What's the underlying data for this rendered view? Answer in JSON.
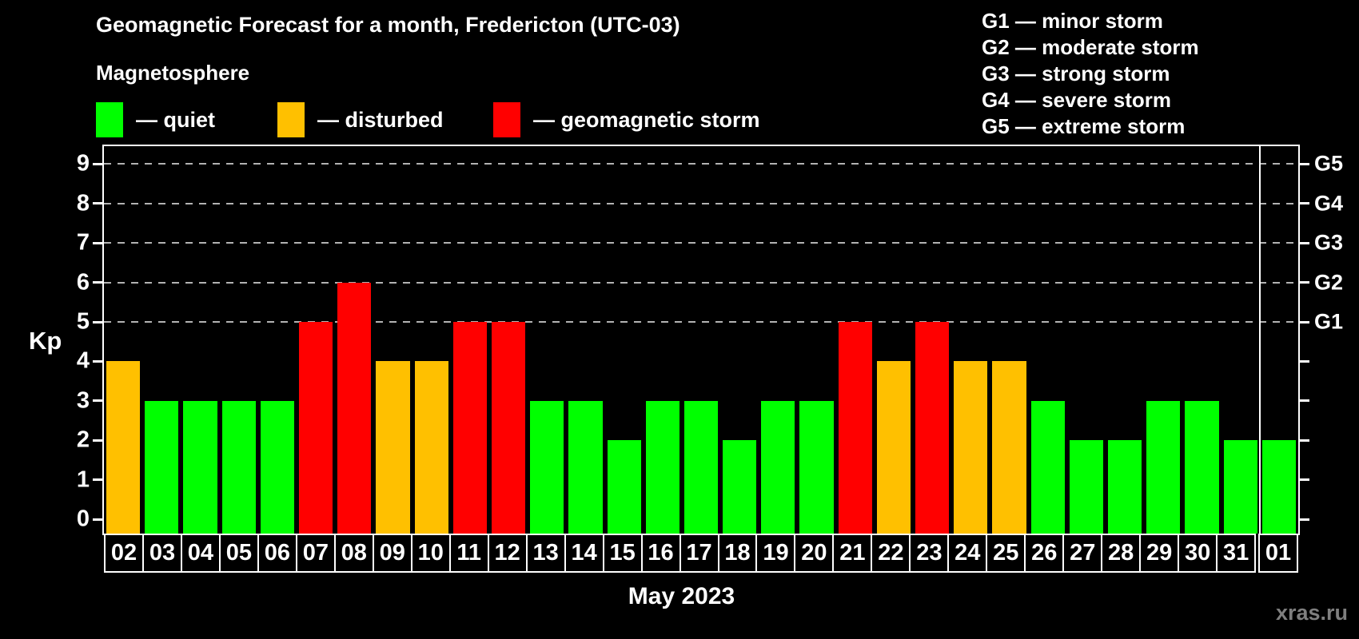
{
  "title": "Geomagnetic Forecast for a month, Fredericton (UTC-03)",
  "subtitle": "Magnetosphere",
  "legend": {
    "items": [
      {
        "name": "quiet",
        "label": "— quiet",
        "status": "quiet"
      },
      {
        "name": "disturbed",
        "label": "— disturbed",
        "status": "disturbed"
      },
      {
        "name": "storm",
        "label": "— geomagnetic storm",
        "status": "storm"
      }
    ]
  },
  "storm_scale": {
    "lines": [
      "G1 — minor storm",
      "G2 — moderate storm",
      "G3 — strong storm",
      "G4 — severe storm",
      "G5 — extreme storm"
    ]
  },
  "chart_data": {
    "type": "bar",
    "title": "Geomagnetic Forecast for a month, Fredericton (UTC-03)",
    "subtitle": "Magnetosphere",
    "xlabel": "May 2023",
    "ylabel": "Kp",
    "categories": [
      "02",
      "03",
      "04",
      "05",
      "06",
      "07",
      "08",
      "09",
      "10",
      "11",
      "12",
      "13",
      "14",
      "15",
      "16",
      "17",
      "18",
      "19",
      "20",
      "21",
      "22",
      "23",
      "24",
      "25",
      "26",
      "27",
      "28",
      "29",
      "30",
      "31",
      "01"
    ],
    "values": [
      4,
      3,
      3,
      3,
      3,
      5,
      6,
      4,
      4,
      5,
      5,
      3,
      3,
      2,
      3,
      3,
      2,
      3,
      3,
      5,
      4,
      5,
      4,
      4,
      3,
      2,
      2,
      3,
      3,
      2,
      2
    ],
    "statuses": [
      "disturbed",
      "quiet",
      "quiet",
      "quiet",
      "quiet",
      "storm",
      "storm",
      "disturbed",
      "disturbed",
      "storm",
      "storm",
      "quiet",
      "quiet",
      "quiet",
      "quiet",
      "quiet",
      "quiet",
      "quiet",
      "quiet",
      "storm",
      "disturbed",
      "storm",
      "disturbed",
      "disturbed",
      "quiet",
      "quiet",
      "quiet",
      "quiet",
      "quiet",
      "quiet",
      "quiet"
    ],
    "ylim": [
      -0.36,
      9.45
    ],
    "yticks": [
      0,
      1,
      2,
      3,
      4,
      5,
      6,
      7,
      8,
      9
    ],
    "gridlines": [
      5,
      6,
      7,
      8,
      9
    ],
    "right_axis": [
      {
        "kp": 5,
        "label": "G1"
      },
      {
        "kp": 6,
        "label": "G2"
      },
      {
        "kp": 7,
        "label": "G3"
      },
      {
        "kp": 8,
        "label": "G4"
      },
      {
        "kp": 9,
        "label": "G5"
      }
    ],
    "month_boundary_after_index": 29,
    "legend_position": "top-left",
    "grid": "horizontal dashed lines at Kp 5-9 only"
  },
  "watermark": "xras.ru",
  "colors": {
    "background": "#000000",
    "text": "#ffffff",
    "quiet": "#00ff00",
    "disturbed": "#ffc000",
    "storm": "#ff0000",
    "gridline": "#b3b3b3",
    "axis": "#ffffff",
    "watermark": "#7f7f7f"
  }
}
